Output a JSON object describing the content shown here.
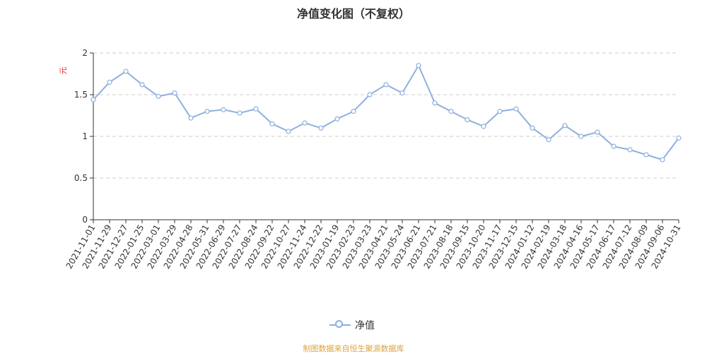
{
  "title": "净值变化图（不复权）",
  "source": "制图数据来自恒生聚源数据库",
  "chart_data": {
    "type": "line",
    "ylabel": "元",
    "ylim": [
      0,
      2
    ],
    "yticks": [
      0,
      0.5,
      1,
      1.5,
      2
    ],
    "ytick_labels": [
      "0",
      "0.5",
      "1",
      "1.5",
      "2"
    ],
    "grid": true,
    "legend_position": "bottom",
    "series_color": "#8fb0de",
    "ylabel_color": "#e03030",
    "categories": [
      "2021-11-01",
      "2021-11-29",
      "2021-12-27",
      "2022-01-25",
      "2022-03-01",
      "2022-03-29",
      "2022-04-28",
      "2022-05-31",
      "2022-06-29",
      "2022-07-27",
      "2022-08-24",
      "2022-09-22",
      "2022-10-27",
      "2022-11-24",
      "2022-12-22",
      "2023-01-19",
      "2023-02-23",
      "2023-03-23",
      "2023-04-21",
      "2023-05-24",
      "2023-06-21",
      "2023-07-21",
      "2023-08-18",
      "2023-09-15",
      "2023-10-20",
      "2023-11-17",
      "2023-12-15",
      "2024-01-12",
      "2024-02-19",
      "2024-03-18",
      "2024-04-16",
      "2024-05-17",
      "2024-06-17",
      "2024-07-12",
      "2024-08-09",
      "2024-09-06",
      "2024-10-31"
    ],
    "series": [
      {
        "name": "净值",
        "values": [
          1.44,
          1.65,
          1.78,
          1.62,
          1.48,
          1.52,
          1.22,
          1.3,
          1.32,
          1.28,
          1.33,
          1.15,
          1.06,
          1.16,
          1.1,
          1.21,
          1.3,
          1.5,
          1.62,
          1.52,
          1.85,
          1.4,
          1.3,
          1.2,
          1.12,
          1.3,
          1.33,
          1.1,
          0.96,
          1.13,
          1.0,
          1.05,
          0.88,
          0.84,
          0.78,
          0.72,
          0.98
        ]
      }
    ]
  },
  "legend": {
    "label": "净值"
  }
}
